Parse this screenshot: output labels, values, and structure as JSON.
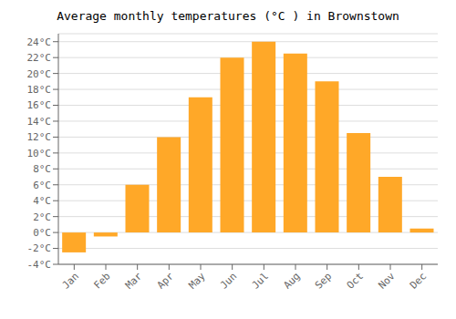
{
  "chart_data": {
    "type": "bar",
    "title": "Average monthly temperatures (°C ) in Brownstown",
    "categories": [
      "Jan",
      "Feb",
      "Mar",
      "Apr",
      "May",
      "Jun",
      "Jul",
      "Aug",
      "Sep",
      "Oct",
      "Nov",
      "Dec"
    ],
    "values": [
      -2.5,
      -0.5,
      6.0,
      12.0,
      17.0,
      22.0,
      24.0,
      22.5,
      19.0,
      12.5,
      7.0,
      0.5
    ],
    "color": "#FFA828",
    "ylim": [
      -4,
      25
    ],
    "yticks": [
      {
        "value": -4,
        "label": "-4°C"
      },
      {
        "value": -2,
        "label": "-2°C"
      },
      {
        "value": 0,
        "label": "0°C"
      },
      {
        "value": 2,
        "label": "2°C"
      },
      {
        "value": 4,
        "label": "4°C"
      },
      {
        "value": 6,
        "label": "6°C"
      },
      {
        "value": 8,
        "label": "8°C"
      },
      {
        "value": 10,
        "label": "10°C"
      },
      {
        "value": 12,
        "label": "12°C"
      },
      {
        "value": 14,
        "label": "14°C"
      },
      {
        "value": 16,
        "label": "16°C"
      },
      {
        "value": 18,
        "label": "18°C"
      },
      {
        "value": 20,
        "label": "20°C"
      },
      {
        "value": 22,
        "label": "22°C"
      },
      {
        "value": 24,
        "label": "24°C"
      }
    ],
    "grid": true
  }
}
